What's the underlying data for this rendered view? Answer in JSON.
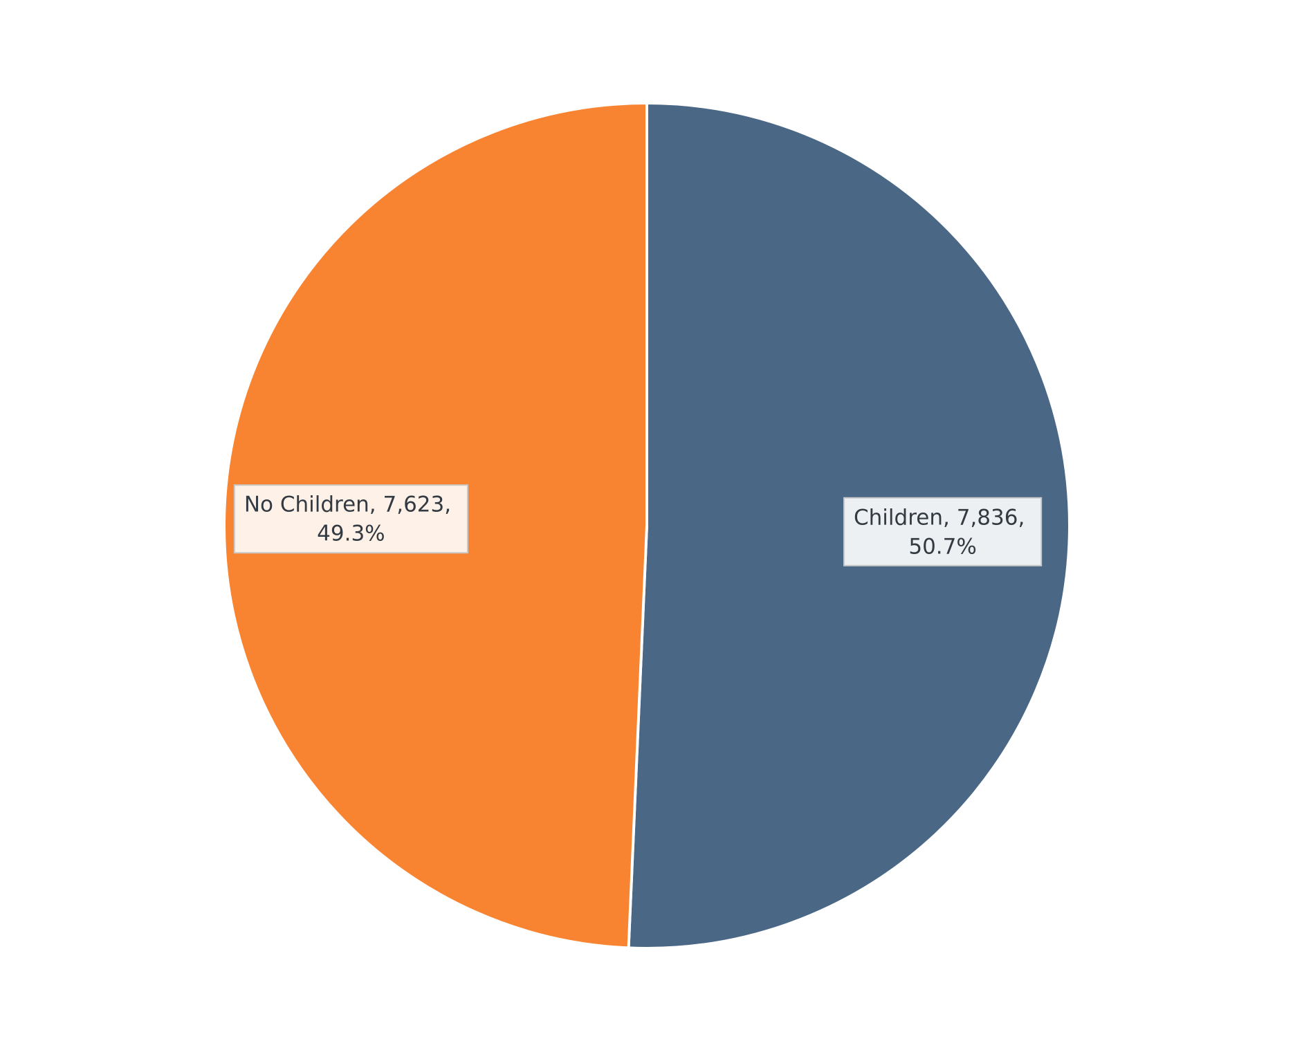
{
  "chart_data": {
    "type": "pie",
    "values": [
      7836,
      7623
    ],
    "value_labels": [
      "Children, 7,836, 50.7%",
      "No Children, 7,623, 49.3%"
    ],
    "colors": [
      "#4a6785",
      "#f88432"
    ],
    "label_fills": [
      "#ecf0f3",
      "#fef1e8"
    ]
  }
}
